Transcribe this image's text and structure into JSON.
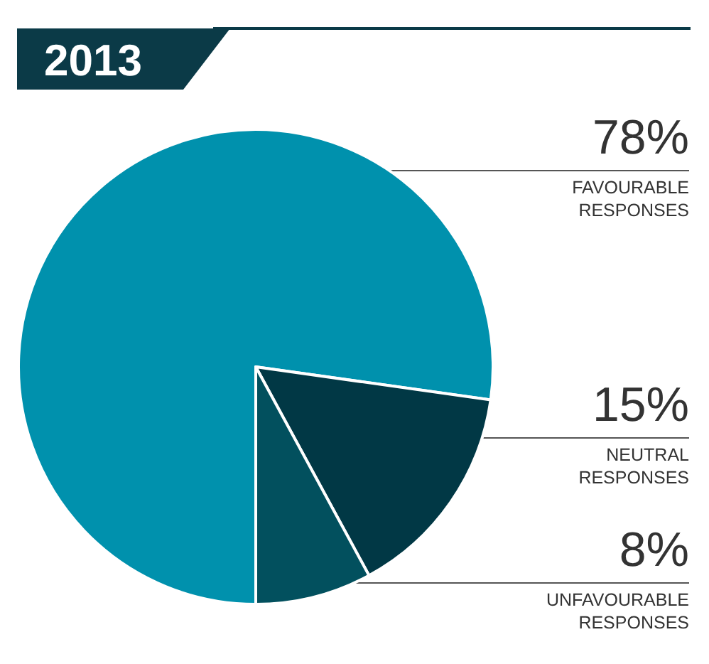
{
  "chart_data": {
    "type": "pie",
    "title": "2013",
    "categories": [
      "FAVOURABLE RESPONSES",
      "NEUTRAL RESPONSES",
      "UNFAVOURABLE RESPONSES"
    ],
    "values": [
      78,
      15,
      8
    ],
    "value_labels": [
      "78%",
      "15%",
      "8%"
    ],
    "colors": [
      "#0091ad",
      "#013845",
      "#02505e"
    ],
    "legend": false
  }
}
